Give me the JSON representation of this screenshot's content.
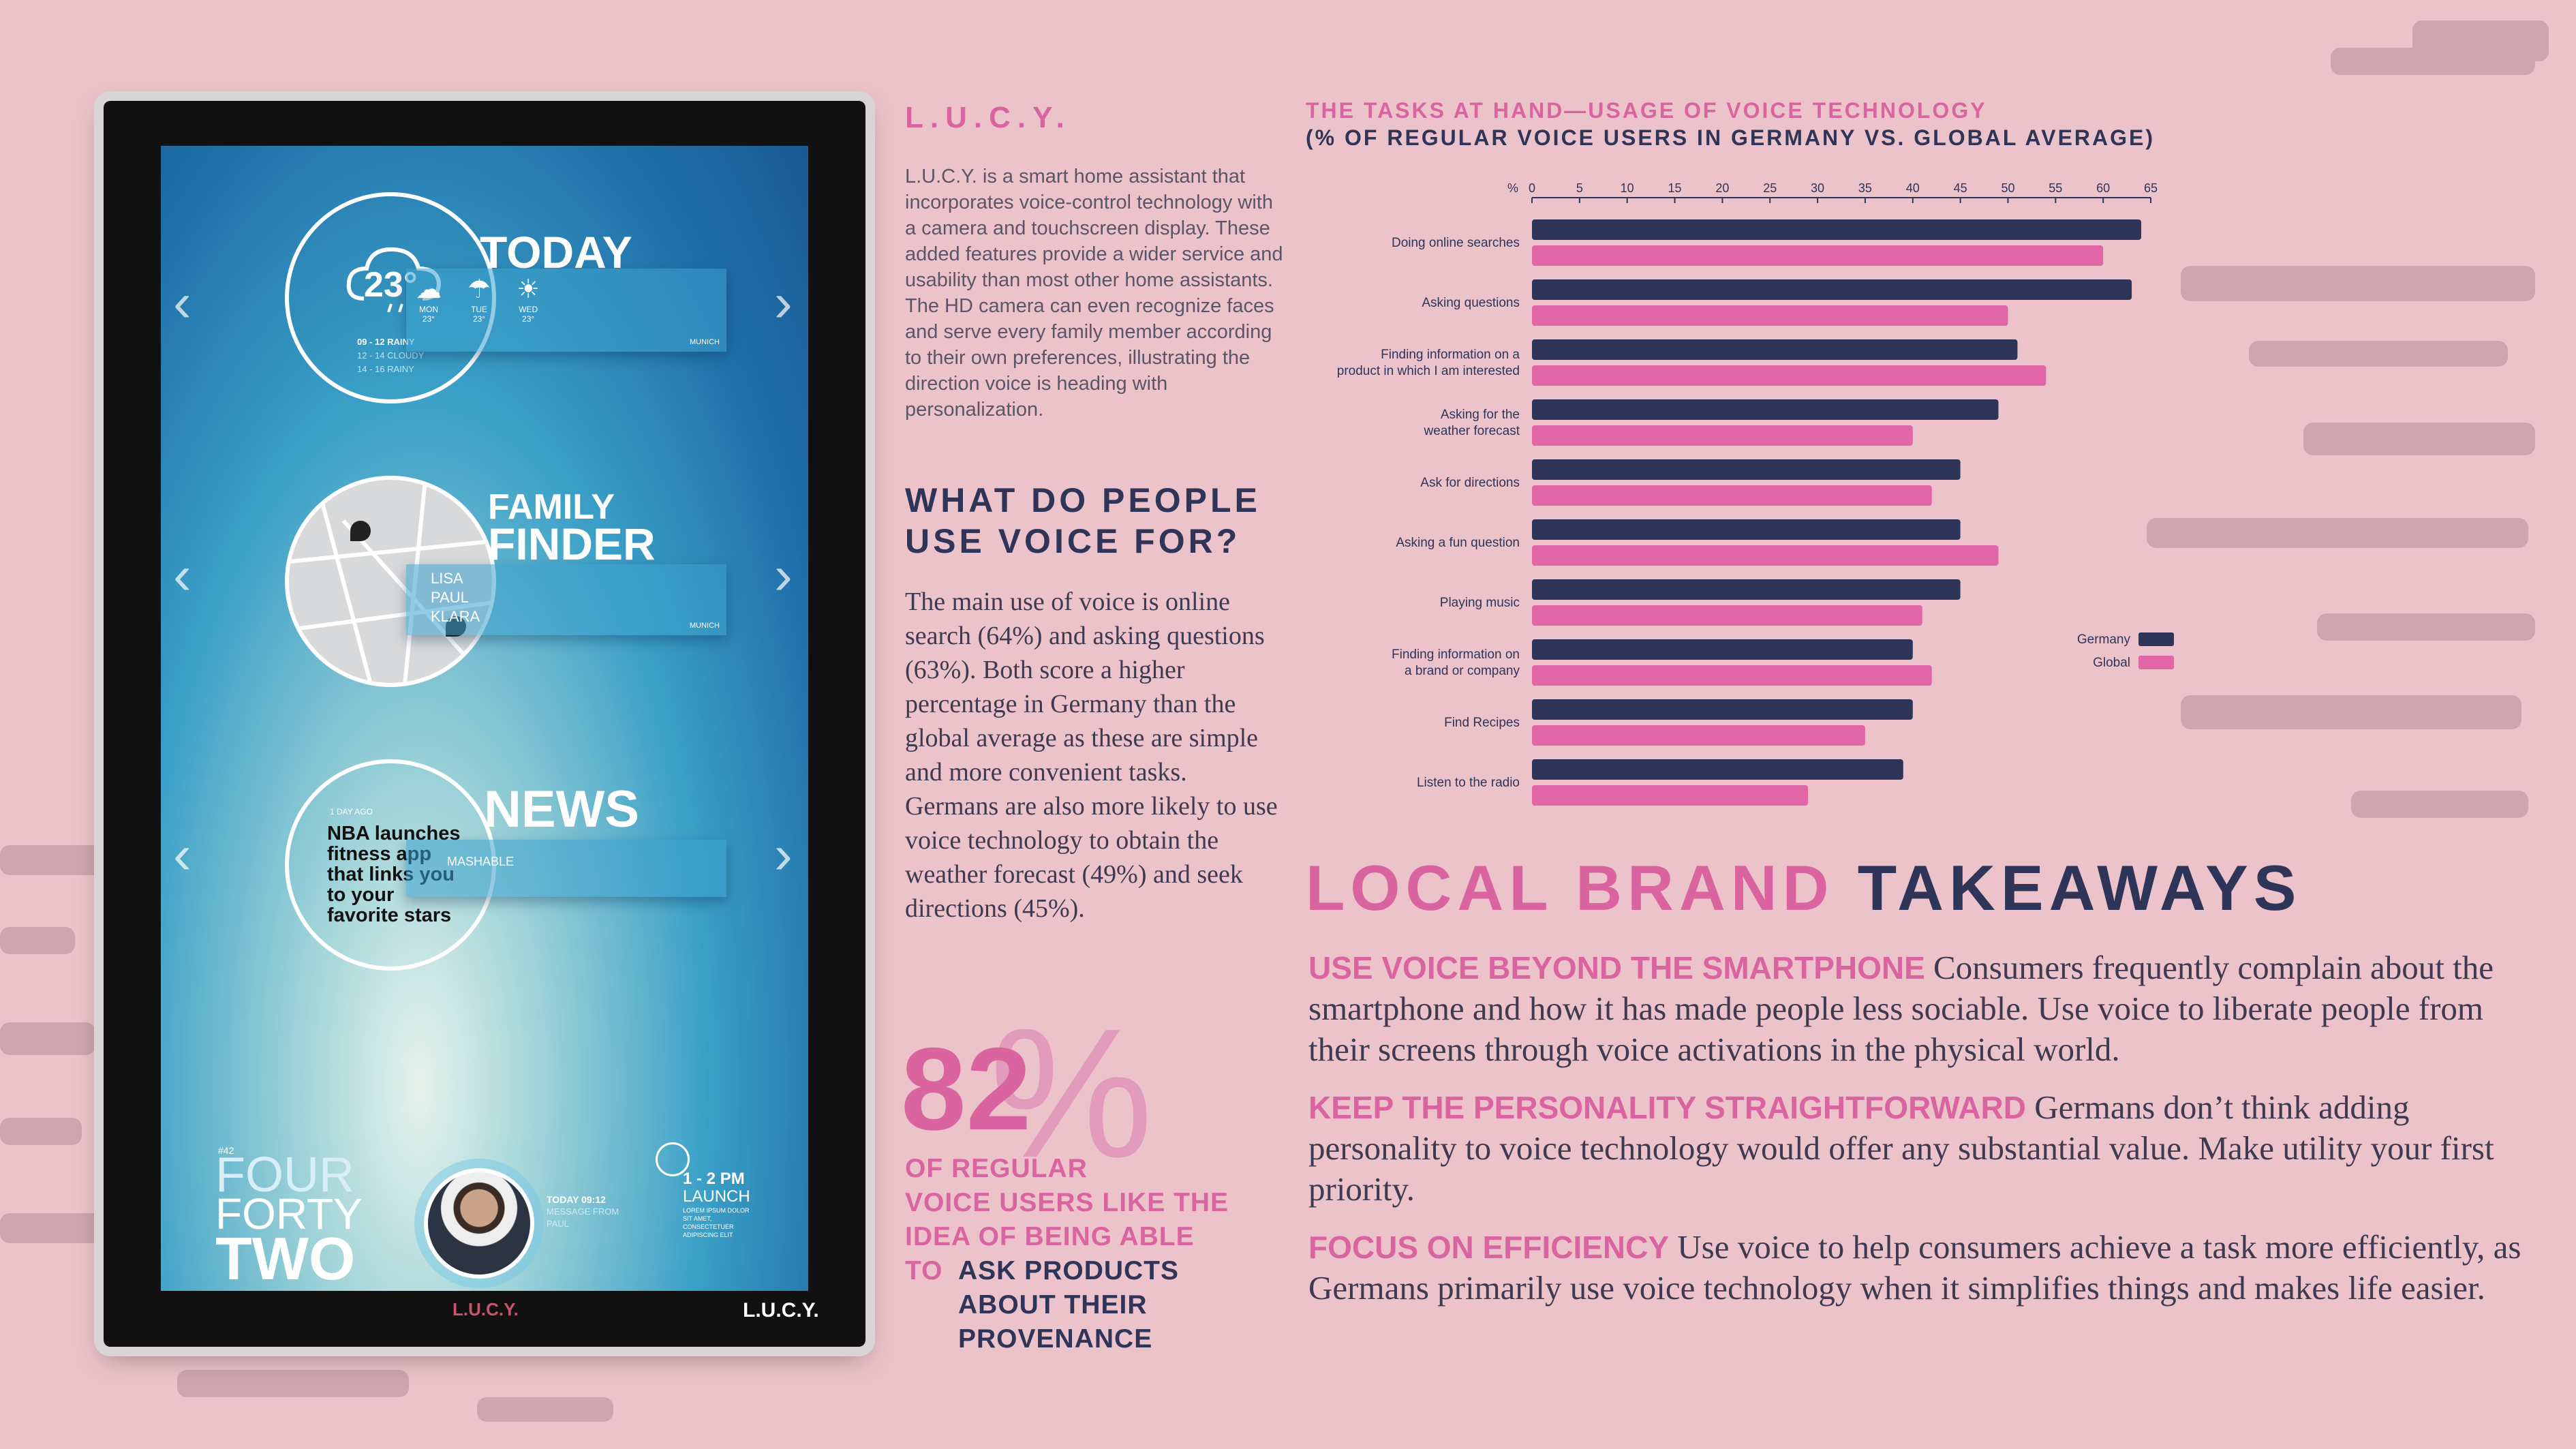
{
  "device": {
    "weather": {
      "temp": "23°",
      "heading": "TODAY",
      "line1": "09 - 12 RAINY",
      "line2": "12 - 14 CLOUDY",
      "line3": "14 - 16 RAINY",
      "days": [
        {
          "d": "MON",
          "t": "23°"
        },
        {
          "d": "TUE",
          "t": "23°"
        },
        {
          "d": "WED",
          "t": "23°"
        }
      ],
      "city": "MUNICH"
    },
    "finder": {
      "heading1": "FAMILY",
      "heading2": "FINDER",
      "members": [
        "LISA",
        "PAUL",
        "KLARA"
      ],
      "city": "MUNICH"
    },
    "news": {
      "ago": "1 DAY AGO",
      "headline": "NBA launches fitness app that links you to your favorite stars",
      "heading": "NEWS",
      "source": "MASHABLE"
    },
    "clock": {
      "small": "#42",
      "w1": "FOUR",
      "w2": "FORTY",
      "w3": "TWO"
    },
    "message": {
      "line1": "TODAY 09:12",
      "line2": "MESSAGE FROM",
      "line3": "PAUL"
    },
    "event": {
      "time": "1 - 2 PM",
      "title": "LAUNCH",
      "note": "LOREM IPSUM DOLOR SIT AMET, CONSECTETUER ADIPISCING ELIT"
    },
    "brand_bezel": "L.U.C.Y.",
    "brand_corner": "L.U.C.Y."
  },
  "lucy": {
    "title": "L.U.C.Y.",
    "description": "L.U.C.Y. is a smart home assistant that incorporates voice-control technology with a camera and touchscreen display. These added features provide a wider service and usability than most other home assistants. The HD camera can even recognize faces and serve every family member according to their own preferences, illustrating the direction voice is heading with personalization."
  },
  "question": {
    "title": "WHAT DO PEOPLE USE VOICE FOR?",
    "body": "The main use of voice is online search (64%) and asking questions (63%). Both score a higher percentage in Germany than the global average as these are simple and more convenient tasks. Germans are also more likely to use voice technology to obtain the weather forecast (49%) and seek directions (45%)."
  },
  "stat": {
    "number": "82",
    "percent_sign": "%",
    "pink_lines": [
      "OF REGULAR",
      "VOICE USERS LIKE THE",
      "IDEA OF BEING ABLE",
      "TO"
    ],
    "navy_lines": [
      "ASK PRODUCTS",
      "ABOUT THEIR",
      "PROVENANCE"
    ]
  },
  "chart_data": {
    "type": "bar",
    "title": "THE TASKS AT HAND—USAGE OF VOICE TECHNOLOGY",
    "subtitle": "(% OF REGULAR VOICE USERS IN GERMANY VS. GLOBAL AVERAGE)",
    "axis_unit": "%",
    "xlim": [
      0,
      65
    ],
    "ticks": [
      0,
      5,
      10,
      15,
      20,
      25,
      30,
      35,
      40,
      45,
      50,
      55,
      60,
      65
    ],
    "categories": [
      "Doing online searches",
      "Asking questions",
      "Finding information on a product in which I am interested",
      "Asking for the weather forecast",
      "Ask for directions",
      "Asking a fun question",
      "Playing music",
      "Finding information on a brand or company",
      "Find Recipes",
      "Listen to the radio"
    ],
    "category_lines": [
      [
        "Doing online searches"
      ],
      [
        "Asking questions"
      ],
      [
        "Finding information on a",
        "product in which I am interested"
      ],
      [
        "Asking for the",
        "weather forecast"
      ],
      [
        "Ask for directions"
      ],
      [
        "Asking a fun question"
      ],
      [
        "Playing music"
      ],
      [
        "Finding information on",
        "a brand or company"
      ],
      [
        "Find Recipes"
      ],
      [
        "Listen to the radio"
      ]
    ],
    "series": [
      {
        "name": "Germany",
        "color": "#2f3558",
        "values": [
          64,
          63,
          51,
          49,
          45,
          45,
          45,
          40,
          40,
          39
        ]
      },
      {
        "name": "Global",
        "color": "#e066a6",
        "values": [
          60,
          50,
          54,
          40,
          42,
          49,
          41,
          42,
          35,
          29
        ]
      }
    ],
    "legend": "right"
  },
  "takeaways": {
    "title_pink": "LOCAL BRAND",
    "title_navy": "TAKEAWAYS",
    "items": [
      {
        "heading": "USE VOICE BEYOND THE SMARTPHONE",
        "text": "Consumers frequently complain about the smartphone and how it has made people less sociable. Use voice to liberate people from their screens through voice activations in the physical world."
      },
      {
        "heading": "KEEP THE PERSONALITY STRAIGHTFORWARD",
        "text": "Germans don’t think adding personality to voice technology would offer any substantial value. Make utility your first priority."
      },
      {
        "heading": "FOCUS ON EFFICIENCY",
        "text": "Use voice to help consumers achieve a task more efficiently, as Germans primarily use voice technology when it simplifies things and makes life easier."
      }
    ]
  }
}
